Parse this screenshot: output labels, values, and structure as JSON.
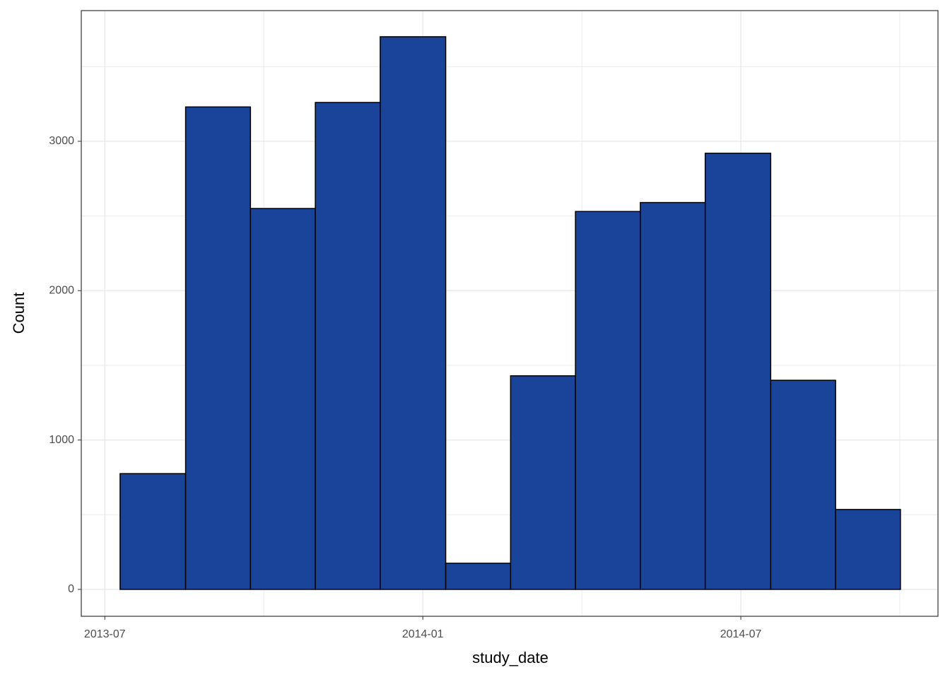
{
  "chart_data": {
    "type": "histogram",
    "x_label": "study_date",
    "y_label": "Count",
    "bins": [
      2013.524,
      2013.627,
      2013.729,
      2013.831,
      2013.933,
      2014.036,
      2014.138,
      2014.24,
      2014.342,
      2014.444,
      2014.547,
      2014.649,
      2014.751
    ],
    "values": [
      775,
      3230,
      2550,
      3260,
      3700,
      175,
      1430,
      2530,
      2590,
      2920,
      1400,
      535
    ],
    "color": "#1a4499",
    "edge_color": "#000000",
    "xlim": [
      2013.463,
      2014.81
    ],
    "xticks": [
      {
        "value": 2013.5,
        "label": "2013-07"
      },
      {
        "value": 2014.0,
        "label": "2014-01"
      },
      {
        "value": 2014.5,
        "label": "2014-07"
      }
    ],
    "x_minor_ticks": [
      2013.75,
      2014.25,
      2014.75
    ],
    "ylim": [
      -180,
      3875
    ],
    "yticks": [
      0,
      1000,
      2000,
      3000
    ],
    "y_minor_ticks": [
      500,
      1500,
      2500,
      3500
    ],
    "grid": true
  }
}
